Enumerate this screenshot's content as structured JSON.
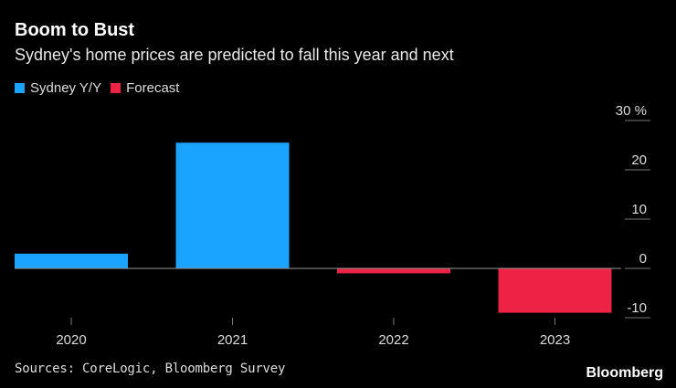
{
  "title": "Boom to Bust",
  "subtitle": "Sydney's home prices are predicted to fall this year and next",
  "legend": [
    {
      "label": "Sydney Y/Y",
      "color": "#1aa3ff"
    },
    {
      "label": "Forecast",
      "color": "#ee2244"
    }
  ],
  "source": "Sources: CoreLogic, Bloomberg Survey",
  "brand": "Bloomberg",
  "chart_data": {
    "type": "bar",
    "title": "Boom to Bust",
    "subtitle": "Sydney's home prices are predicted to fall this year and next",
    "categories": [
      "2020",
      "2021",
      "2022",
      "2023"
    ],
    "values": [
      3,
      25.5,
      -1,
      -9
    ],
    "series_type": [
      "Sydney Y/Y",
      "Sydney Y/Y",
      "Forecast",
      "Forecast"
    ],
    "ylabel": "%",
    "ylim": [
      -10,
      30
    ],
    "yticks": [
      30,
      20,
      10,
      0,
      -10
    ],
    "ytick_labels": [
      "30 %",
      "20",
      "10",
      "0",
      "-10"
    ],
    "legend_position": "top-left",
    "axis_side": "right"
  }
}
